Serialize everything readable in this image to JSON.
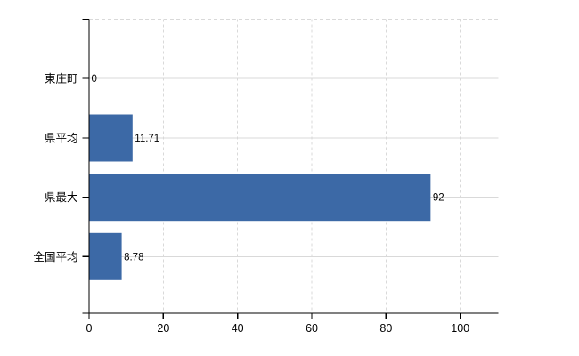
{
  "chart_data": {
    "type": "bar",
    "orientation": "horizontal",
    "categories": [
      "東庄町",
      "県平均",
      "県最大",
      "全国平均"
    ],
    "values": [
      0,
      11.71,
      92,
      8.78
    ],
    "data_labels": [
      "0",
      "11.71",
      "92",
      "8.78"
    ],
    "x_ticks": [
      0,
      20,
      40,
      60,
      80,
      100
    ],
    "x_tick_labels": [
      "0",
      "20",
      "40",
      "60",
      "80",
      "100"
    ],
    "xlim": [
      0,
      110
    ],
    "grid": "on",
    "legend": "none",
    "colors": {
      "bar": "#3c69a6",
      "gridline": "#d9d9d9",
      "axis": "#000000",
      "label_text": "#000000",
      "background": "#ffffff"
    }
  }
}
